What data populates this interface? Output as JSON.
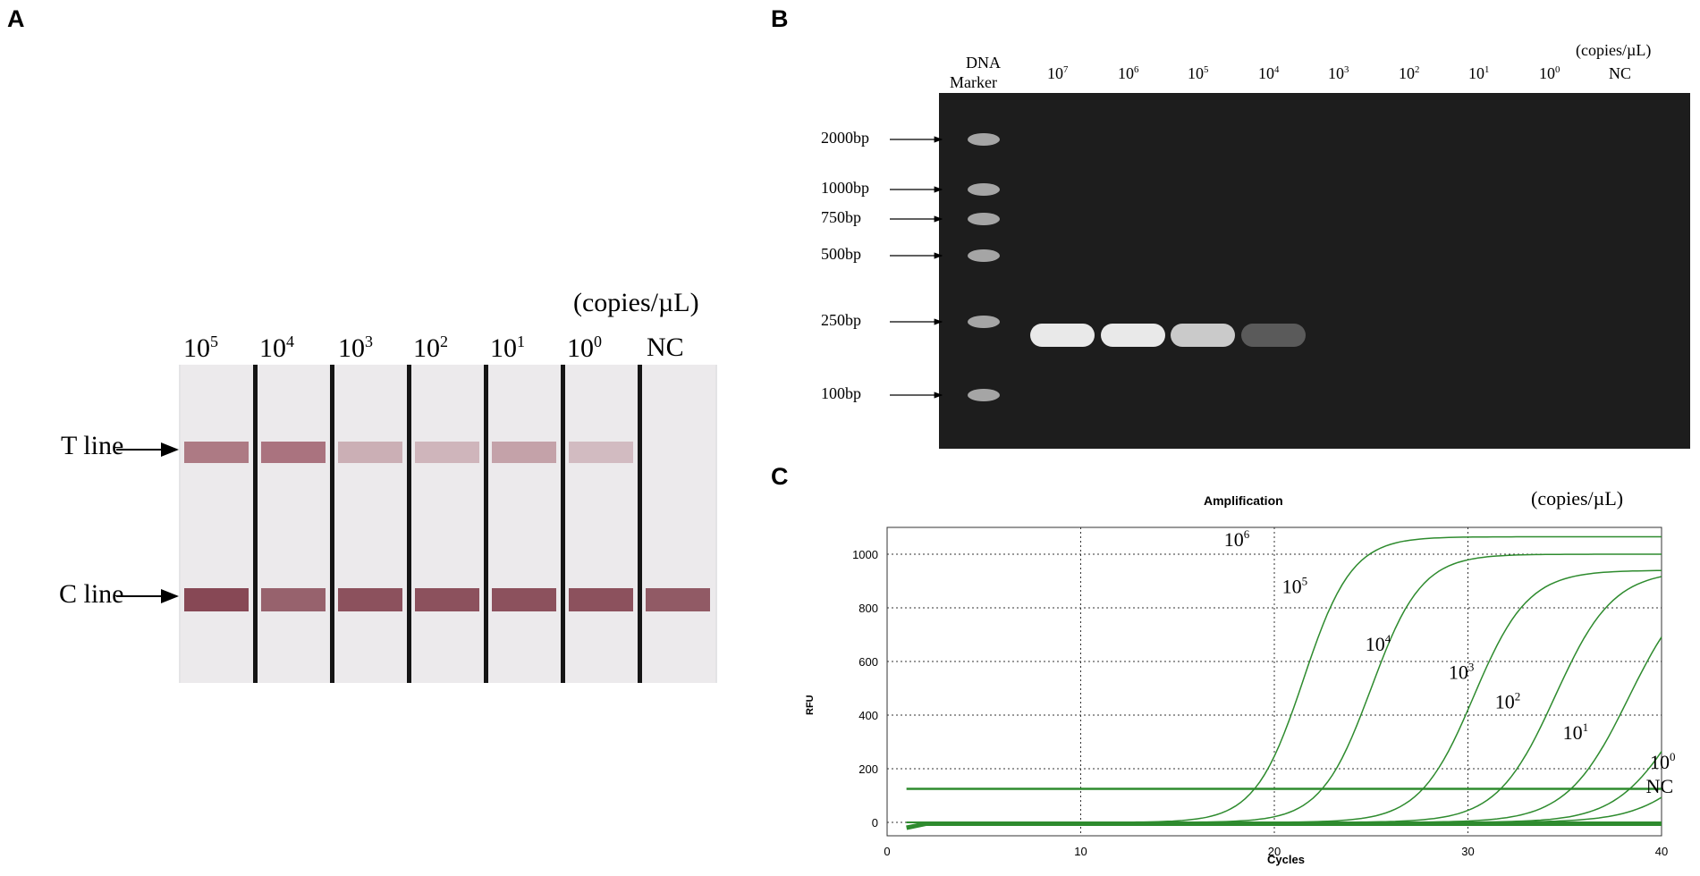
{
  "panels": [
    {
      "letter": "A",
      "unit": "(copies/µL)",
      "lanes": [
        {
          "base": "10",
          "exp": "5",
          "t_intensity": 0.85,
          "c_intensity": 0.95
        },
        {
          "base": "10",
          "exp": "4",
          "t_intensity": 0.9,
          "c_intensity": 0.8
        },
        {
          "base": "10",
          "exp": "3",
          "t_intensity": 0.45,
          "c_intensity": 0.9
        },
        {
          "base": "10",
          "exp": "2",
          "t_intensity": 0.4,
          "c_intensity": 0.9
        },
        {
          "base": "10",
          "exp": "1",
          "t_intensity": 0.55,
          "c_intensity": 0.9
        },
        {
          "base": "10",
          "exp": "0",
          "t_intensity": 0.35,
          "c_intensity": 0.9
        },
        {
          "base": "NC",
          "exp": "",
          "t_intensity": 0,
          "c_intensity": 0.85
        }
      ],
      "line_labels": {
        "t": "T line",
        "c": "C line"
      }
    },
    {
      "letter": "B",
      "unit": "(copies/µL)",
      "marker_label_line1": "DNA",
      "marker_label_line2": "Marker",
      "lanes": [
        {
          "base": "10",
          "exp": "7",
          "intensity": 1.0
        },
        {
          "base": "10",
          "exp": "6",
          "intensity": 1.0
        },
        {
          "base": "10",
          "exp": "5",
          "intensity": 0.85
        },
        {
          "base": "10",
          "exp": "4",
          "intensity": 0.3
        },
        {
          "base": "10",
          "exp": "3",
          "intensity": 0
        },
        {
          "base": "10",
          "exp": "2",
          "intensity": 0
        },
        {
          "base": "10",
          "exp": "1",
          "intensity": 0
        },
        {
          "base": "10",
          "exp": "0",
          "intensity": 0
        },
        {
          "base": "NC",
          "exp": "",
          "intensity": 0
        }
      ],
      "ladder": [
        {
          "bp": 2000,
          "label": "2000bp"
        },
        {
          "bp": 1000,
          "label": "1000bp"
        },
        {
          "bp": 750,
          "label": "750bp"
        },
        {
          "bp": 500,
          "label": "500bp"
        },
        {
          "bp": 250,
          "label": "250bp"
        },
        {
          "bp": 100,
          "label": "100bp"
        }
      ]
    },
    {
      "letter": "C",
      "title": "Amplification",
      "unit": "(copies/µL)",
      "chart_data": {
        "type": "line",
        "title": "Amplification",
        "xlabel": "Cycles",
        "ylabel": "RFU",
        "xlim": [
          0,
          40
        ],
        "ylim": [
          -50,
          1100
        ],
        "xticks": [
          0,
          10,
          20,
          30,
          40
        ],
        "yticks": [
          0,
          200,
          400,
          600,
          800,
          1000
        ],
        "grid": true,
        "threshold": 125,
        "series_color": "#2e8b2e",
        "series": [
          {
            "base": "10",
            "exp": "6",
            "plateau": 1065,
            "midpoint": 21.5,
            "slope": 1.25
          },
          {
            "base": "10",
            "exp": "5",
            "plateau": 1000,
            "midpoint": 25.0,
            "slope": 1.3
          },
          {
            "base": "10",
            "exp": "4",
            "plateau": 940,
            "midpoint": 30.3,
            "slope": 1.4
          },
          {
            "base": "10",
            "exp": "3",
            "plateau": 940,
            "midpoint": 34.5,
            "slope": 1.5
          },
          {
            "base": "10",
            "exp": "2",
            "plateau": 930,
            "midpoint": 38.3,
            "slope": 1.6
          },
          {
            "base": "10",
            "exp": "1",
            "plateau": 700,
            "midpoint": 40.8,
            "slope": 1.6
          },
          {
            "base": "10",
            "exp": "0",
            "plateau": 500,
            "midpoint": 42.5,
            "slope": 1.7
          },
          {
            "base": "NC",
            "exp": "",
            "plateau": 0,
            "midpoint": 50,
            "slope": 1
          }
        ]
      }
    }
  ]
}
